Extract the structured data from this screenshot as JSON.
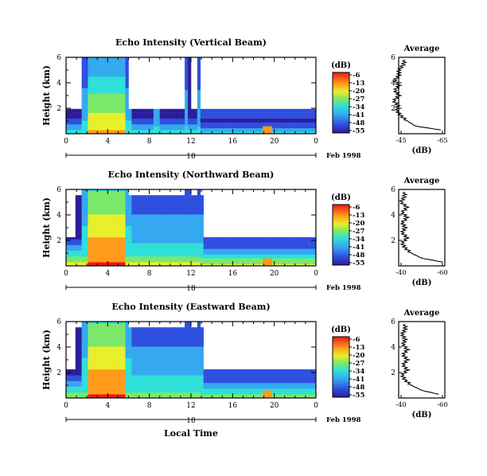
{
  "chart_data": [
    {
      "type": "heatmap",
      "title": "Echo Intensity (Vertical Beam)",
      "ylabel": "Height (km)",
      "xlabel": "",
      "x_ticks": [
        "0",
        "4",
        "8",
        "12",
        "16",
        "20",
        "0"
      ],
      "y_ticks": [
        "2",
        "4",
        "6"
      ],
      "xlim": [
        0,
        24
      ],
      "ylim": [
        0,
        6
      ],
      "date_axis": {
        "day": "18",
        "label": "Feb 1998"
      },
      "colorbar": {
        "unit": "(dB)",
        "ticks": [
          "-6",
          "-13",
          "-20",
          "-27",
          "-34",
          "-41",
          "-48",
          "-55"
        ]
      },
      "profile": {
        "title": "Average",
        "xlabel": "(dB)",
        "x_ticks": [
          "-45",
          "-65"
        ],
        "y_ticks": [
          "2",
          "4",
          "6"
        ],
        "heights": [
          0.3,
          0.6,
          1.0,
          1.4,
          1.8,
          2.2,
          2.6,
          3.0,
          3.4,
          3.8,
          4.2,
          4.6,
          5.0,
          5.4,
          5.8
        ],
        "values": [
          -64,
          -52,
          -48,
          -45,
          -43,
          -43.5,
          -41.5,
          -44,
          -42,
          -44,
          -42,
          -44,
          -44,
          -46,
          -47
        ]
      }
    },
    {
      "type": "heatmap",
      "title": "Echo Intensity (Northward Beam)",
      "ylabel": "Height (km)",
      "xlabel": "",
      "x_ticks": [
        "0",
        "4",
        "8",
        "12",
        "16",
        "20",
        "0"
      ],
      "y_ticks": [
        "2",
        "4",
        "6"
      ],
      "xlim": [
        0,
        24
      ],
      "ylim": [
        0,
        6
      ],
      "date_axis": {
        "day": "18",
        "label": "Feb 1998"
      },
      "colorbar": {
        "unit": "(dB)",
        "ticks": [
          "-6",
          "-13",
          "-20",
          "-27",
          "-34",
          "-41",
          "-48",
          "-55"
        ]
      },
      "profile": {
        "title": "Average",
        "xlabel": "(dB)",
        "x_ticks": [
          "-40",
          "-60"
        ],
        "y_ticks": [
          "2",
          "4",
          "6"
        ],
        "heights": [
          0.3,
          0.6,
          1.0,
          1.4,
          1.8,
          2.2,
          2.6,
          3.0,
          3.4,
          3.8,
          4.2,
          4.6,
          5.0,
          5.4,
          5.8
        ],
        "values": [
          -60,
          -50,
          -45,
          -42,
          -40.5,
          -43,
          -40.5,
          -42,
          -40.5,
          -43,
          -40.5,
          -43,
          -40,
          -41.5,
          -42
        ]
      }
    },
    {
      "type": "heatmap",
      "title": "Echo Intensity (Eastward Beam)",
      "ylabel": "Height (km)",
      "xlabel": "Local Time",
      "x_ticks": [
        "0",
        "4",
        "8",
        "12",
        "16",
        "20",
        "0"
      ],
      "y_ticks": [
        "2",
        "4",
        "6"
      ],
      "xlim": [
        0,
        24
      ],
      "ylim": [
        0,
        6
      ],
      "date_axis": {
        "day": "18",
        "label": "Feb 1998"
      },
      "colorbar": {
        "unit": "(dB)",
        "ticks": [
          "-6",
          "-13",
          "-20",
          "-27",
          "-34",
          "-41",
          "-48",
          "-55"
        ]
      },
      "profile": {
        "title": "Average",
        "xlabel": "(dB)",
        "x_ticks": [
          "-40",
          "-60"
        ],
        "y_ticks": [
          "2",
          "4",
          "6"
        ],
        "heights": [
          0.3,
          0.6,
          1.0,
          1.4,
          1.8,
          2.2,
          2.6,
          3.0,
          3.4,
          3.8,
          4.2,
          4.6,
          5.0,
          5.4,
          5.8
        ],
        "values": [
          -58,
          -50,
          -45,
          -42,
          -40.5,
          -43,
          -41,
          -43,
          -41,
          -43,
          -41,
          -42,
          -40.5,
          -42,
          -42
        ]
      }
    }
  ]
}
